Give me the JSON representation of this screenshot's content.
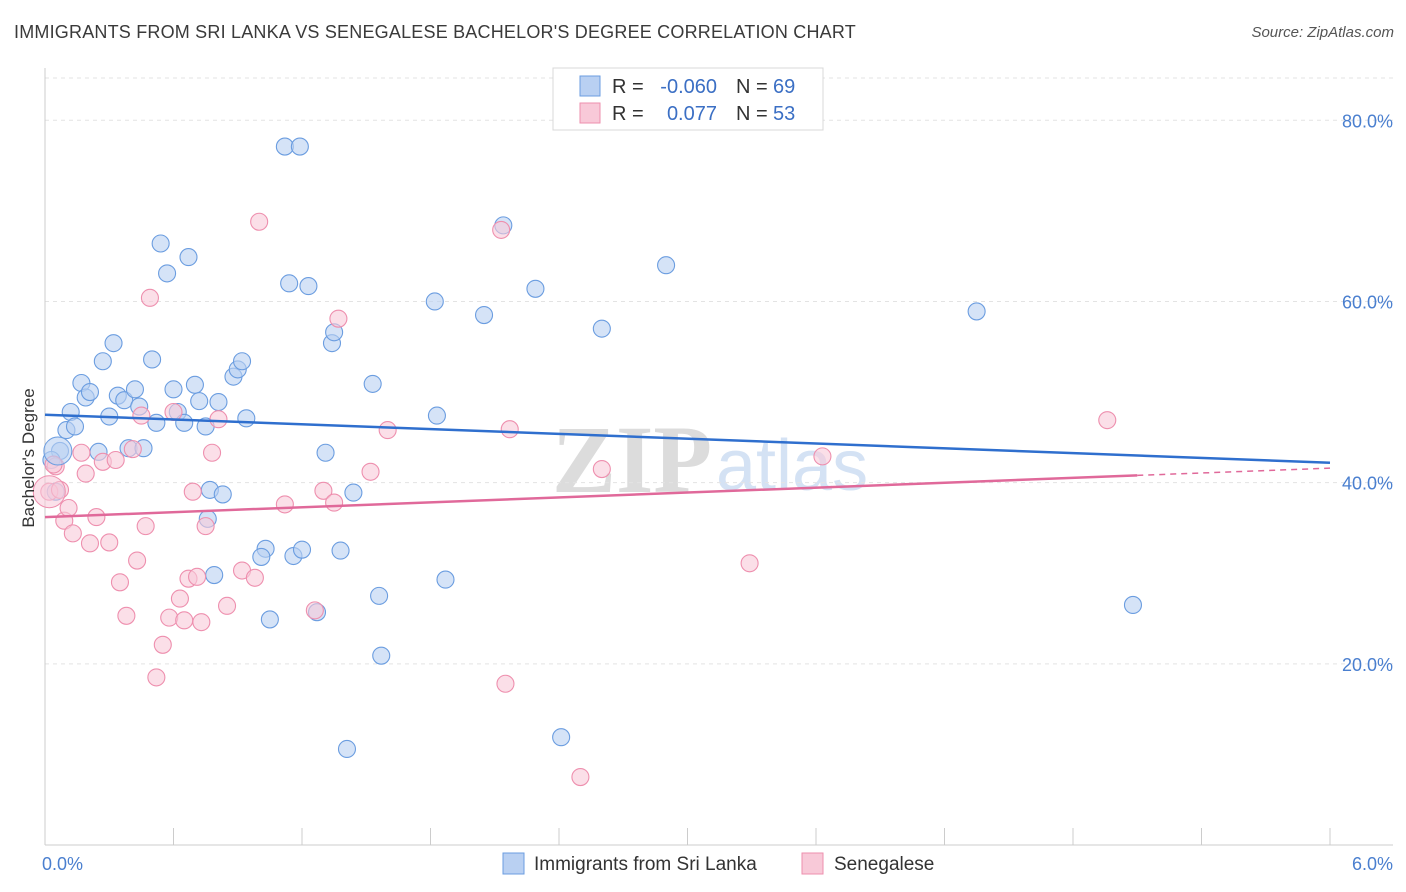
{
  "title": "IMMIGRANTS FROM SRI LANKA VS SENEGALESE BACHELOR'S DEGREE CORRELATION CHART",
  "source": "Source: ZipAtlas.com",
  "watermark": {
    "zip": "ZIP",
    "atlas": "atlas"
  },
  "chart_data": {
    "type": "scatter",
    "ylabel": "Bachelor's Degree",
    "xlabel": "",
    "xlim": [
      0,
      6
    ],
    "ylim": [
      0,
      85
    ],
    "x_tick_labels": [
      "0.0%",
      "6.0%"
    ],
    "y_ticks": [
      20,
      40,
      60,
      80
    ],
    "y_tick_labels": [
      "20.0%",
      "40.0%",
      "60.0%",
      "80.0%"
    ],
    "grid": true,
    "legend_position": "top-center",
    "colors": {
      "series1": "#6b9de0",
      "series1_fill": "#b9d0f2",
      "series1_line": "#2f6fce",
      "series2": "#ee8fae",
      "series2_fill": "#f8c9d8",
      "series2_line": "#e0699a"
    },
    "stats": [
      {
        "r_label": "R =",
        "r_value": "-0.060",
        "n_label": "N =",
        "n_value": "69"
      },
      {
        "r_label": "R =",
        "r_value": "0.077",
        "n_label": "N =",
        "n_value": "53"
      }
    ],
    "series": [
      {
        "name": "Immigrants from Sri Lanka",
        "trend": {
          "x": [
            0,
            6
          ],
          "y": [
            47.5,
            42.2
          ]
        },
        "points": [
          [
            0.07,
            43.5
          ],
          [
            0.1,
            45.8
          ],
          [
            0.12,
            47.8
          ],
          [
            0.14,
            46.2
          ],
          [
            0.17,
            51.0
          ],
          [
            0.19,
            49.4
          ],
          [
            0.21,
            50.0
          ],
          [
            0.25,
            43.4
          ],
          [
            0.27,
            53.4
          ],
          [
            0.3,
            47.3
          ],
          [
            0.32,
            55.4
          ],
          [
            0.34,
            49.6
          ],
          [
            0.37,
            49.1
          ],
          [
            0.39,
            43.8
          ],
          [
            0.42,
            50.3
          ],
          [
            0.44,
            48.4
          ],
          [
            0.46,
            43.8
          ],
          [
            0.5,
            53.6
          ],
          [
            0.52,
            46.6
          ],
          [
            0.54,
            66.4
          ],
          [
            0.57,
            63.1
          ],
          [
            0.6,
            50.3
          ],
          [
            0.62,
            47.8
          ],
          [
            0.65,
            46.6
          ],
          [
            0.67,
            64.9
          ],
          [
            0.7,
            50.8
          ],
          [
            0.72,
            49.0
          ],
          [
            0.75,
            46.2
          ],
          [
            0.77,
            39.2
          ],
          [
            0.79,
            29.8
          ],
          [
            0.81,
            48.9
          ],
          [
            0.83,
            38.7
          ],
          [
            0.76,
            36.0
          ],
          [
            0.88,
            51.7
          ],
          [
            0.9,
            52.5
          ],
          [
            0.92,
            53.4
          ],
          [
            0.94,
            47.1
          ],
          [
            1.03,
            32.7
          ],
          [
            1.01,
            31.8
          ],
          [
            1.05,
            24.9
          ],
          [
            1.12,
            77.1
          ],
          [
            1.19,
            77.1
          ],
          [
            1.14,
            62.0
          ],
          [
            1.16,
            31.9
          ],
          [
            1.2,
            32.6
          ],
          [
            1.23,
            61.7
          ],
          [
            1.27,
            25.7
          ],
          [
            1.31,
            43.3
          ],
          [
            1.34,
            55.4
          ],
          [
            1.35,
            56.6
          ],
          [
            1.38,
            32.5
          ],
          [
            1.41,
            10.6
          ],
          [
            1.44,
            38.9
          ],
          [
            1.53,
            50.9
          ],
          [
            1.56,
            27.5
          ],
          [
            1.57,
            20.9
          ],
          [
            1.82,
            60.0
          ],
          [
            1.83,
            47.4
          ],
          [
            1.87,
            29.3
          ],
          [
            2.05,
            58.5
          ],
          [
            2.14,
            68.4
          ],
          [
            2.29,
            61.4
          ],
          [
            2.41,
            11.9
          ],
          [
            2.6,
            57.0
          ],
          [
            2.9,
            64.0
          ],
          [
            4.35,
            58.9
          ],
          [
            5.08,
            26.5
          ],
          [
            0.03,
            42.5
          ],
          [
            0.05,
            39.0
          ]
        ]
      },
      {
        "name": "Senegalese",
        "trend": {
          "x": [
            0,
            5.1
          ],
          "y": [
            36.2,
            40.8
          ]
        },
        "trend_dashed": {
          "x": [
            5.1,
            6
          ],
          "y": [
            40.8,
            41.6
          ]
        },
        "points": [
          [
            0.02,
            39.0
          ],
          [
            0.05,
            41.8
          ],
          [
            0.07,
            39.2
          ],
          [
            0.09,
            35.8
          ],
          [
            0.11,
            37.2
          ],
          [
            0.13,
            34.4
          ],
          [
            0.17,
            43.3
          ],
          [
            0.19,
            41.0
          ],
          [
            0.21,
            33.3
          ],
          [
            0.24,
            36.2
          ],
          [
            0.27,
            42.3
          ],
          [
            0.3,
            33.4
          ],
          [
            0.33,
            42.5
          ],
          [
            0.35,
            29.0
          ],
          [
            0.38,
            25.3
          ],
          [
            0.41,
            43.7
          ],
          [
            0.43,
            31.4
          ],
          [
            0.45,
            47.4
          ],
          [
            0.47,
            35.2
          ],
          [
            0.49,
            60.4
          ],
          [
            0.52,
            18.5
          ],
          [
            0.55,
            22.1
          ],
          [
            0.58,
            25.1
          ],
          [
            0.6,
            47.8
          ],
          [
            0.63,
            27.2
          ],
          [
            0.65,
            24.8
          ],
          [
            0.67,
            29.4
          ],
          [
            0.69,
            39.0
          ],
          [
            0.71,
            29.6
          ],
          [
            0.73,
            24.6
          ],
          [
            0.75,
            35.2
          ],
          [
            0.78,
            43.3
          ],
          [
            0.81,
            47.0
          ],
          [
            0.85,
            26.4
          ],
          [
            0.92,
            30.3
          ],
          [
            0.98,
            29.5
          ],
          [
            1.0,
            68.8
          ],
          [
            1.12,
            37.6
          ],
          [
            1.26,
            25.9
          ],
          [
            1.3,
            39.1
          ],
          [
            1.35,
            37.8
          ],
          [
            1.37,
            58.1
          ],
          [
            1.52,
            41.2
          ],
          [
            1.6,
            45.8
          ],
          [
            2.13,
            67.9
          ],
          [
            2.15,
            17.8
          ],
          [
            2.17,
            45.9
          ],
          [
            2.5,
            7.5
          ],
          [
            2.6,
            41.5
          ],
          [
            3.29,
            31.1
          ],
          [
            3.63,
            42.9
          ],
          [
            4.96,
            46.9
          ],
          [
            0.04,
            42.0
          ]
        ]
      }
    ]
  }
}
